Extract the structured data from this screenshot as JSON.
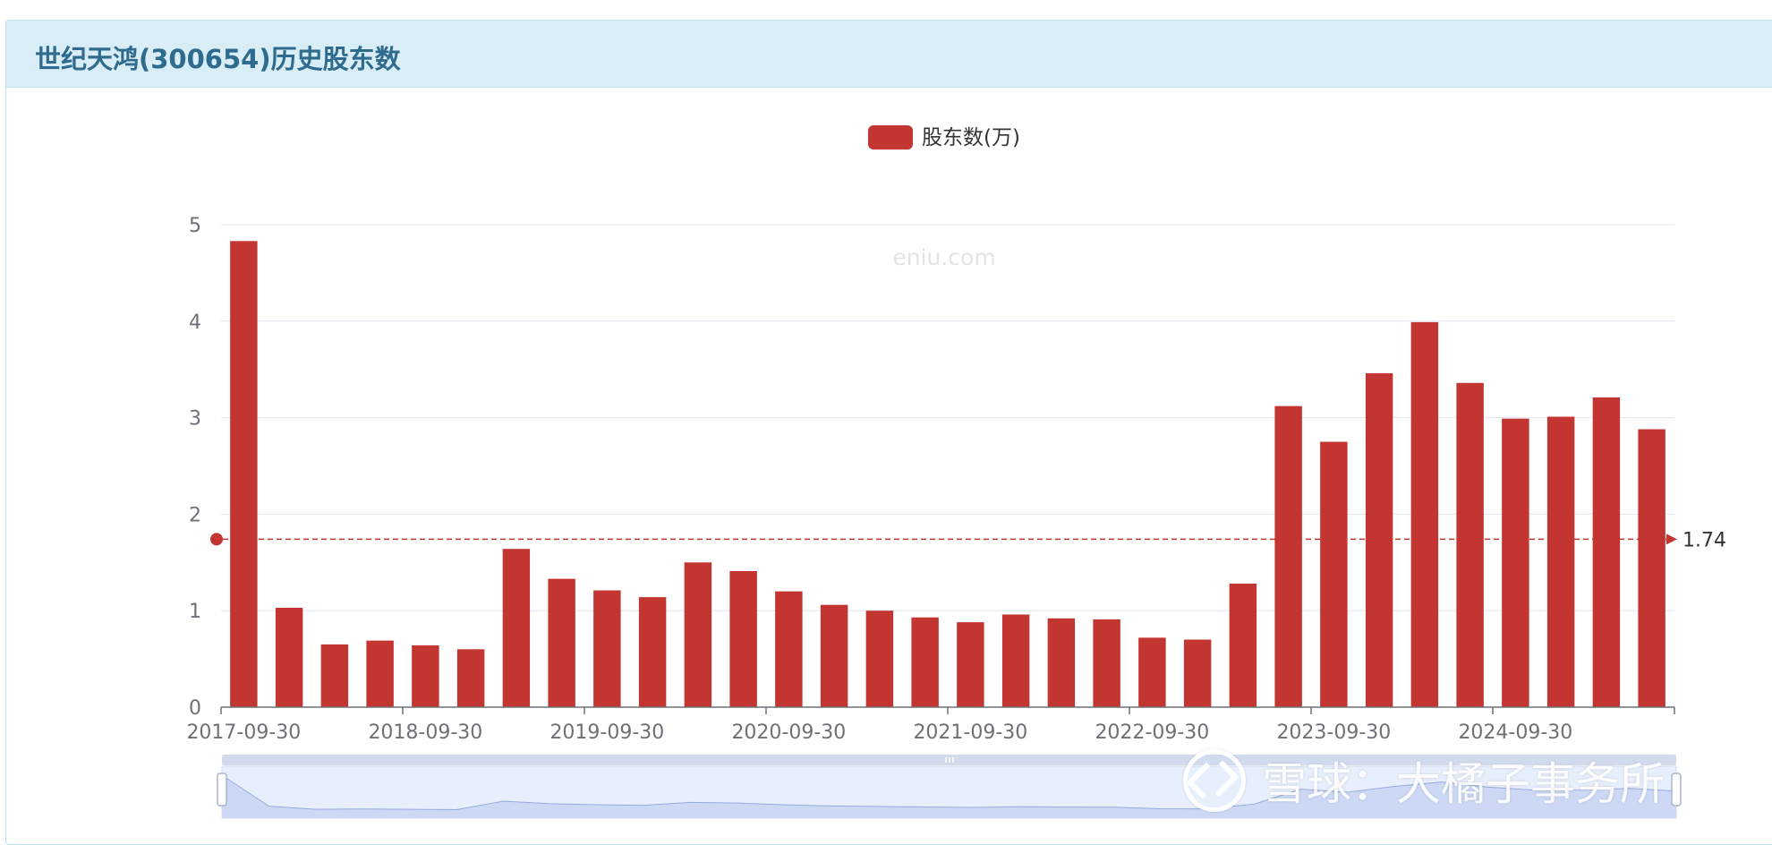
{
  "header": {
    "title": "世纪天鸿(300654)历史股东数"
  },
  "watermark_site": "eniu.com",
  "watermark_xueqiu": {
    "text": "雪球：大橘子事务所",
    "icon": "xueqiu-logo-icon"
  },
  "colors": {
    "bar": "#c33531",
    "header_bg": "#d8edf6",
    "title": "#2e6b8e",
    "grid": "#e0e6f1",
    "axis": "#6e7079"
  },
  "chart_data": {
    "type": "bar",
    "title": "",
    "legend": {
      "entries": [
        "股东数(万)"
      ],
      "placement": "top-center"
    },
    "series": [
      {
        "name": "股东数(万)",
        "values": [
          4.83,
          1.03,
          0.65,
          0.69,
          0.64,
          0.6,
          1.64,
          1.33,
          1.21,
          1.14,
          1.5,
          1.41,
          1.2,
          1.06,
          1.0,
          0.93,
          0.88,
          0.96,
          0.92,
          0.91,
          0.72,
          0.7,
          1.28,
          3.12,
          2.75,
          3.46,
          3.99,
          3.36,
          2.99,
          3.01,
          3.21,
          2.88
        ]
      }
    ],
    "x_tick_labels": [
      "2017-09-30",
      "2018-09-30",
      "2019-09-30",
      "2020-09-30",
      "2021-09-30",
      "2022-09-30",
      "2023-09-30",
      "2024-09-30"
    ],
    "x_tick_indices": [
      0,
      4,
      8,
      12,
      16,
      20,
      24,
      28
    ],
    "ylim": [
      0,
      5
    ],
    "y_ticks": [
      0,
      1,
      2,
      3,
      4,
      5
    ],
    "xlabel": "",
    "ylabel": "",
    "grid": true,
    "mark_line": {
      "type": "average",
      "value": 1.74,
      "label": "1.74"
    },
    "data_zoom": {
      "range_start": 0,
      "range_end": 100
    }
  }
}
